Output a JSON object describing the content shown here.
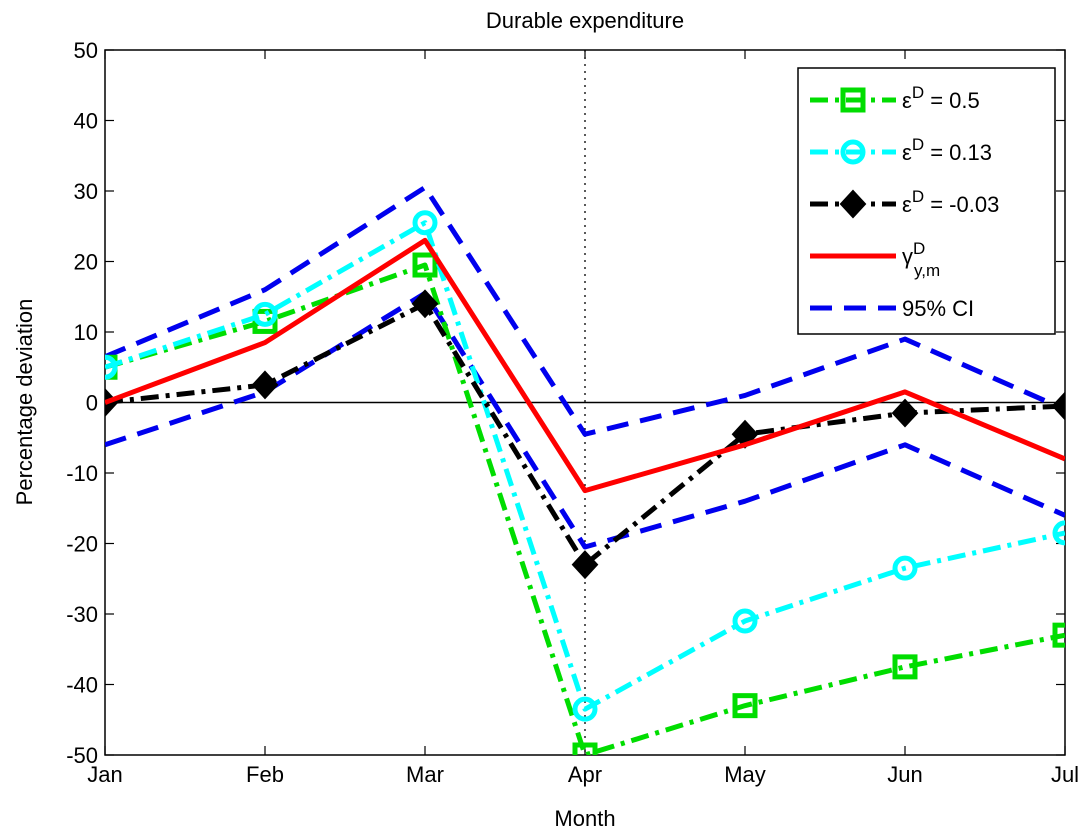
{
  "chart_data": {
    "type": "line",
    "title": "Durable expenditure",
    "xlabel": "Month",
    "ylabel": "Percentage deviation",
    "categories": [
      "Jan",
      "Feb",
      "Mar",
      "Apr",
      "May",
      "Jun",
      "Jul"
    ],
    "ylim": [
      -50,
      50
    ],
    "yticks": [
      -50,
      -40,
      -30,
      -20,
      -10,
      0,
      10,
      20,
      30,
      40,
      50
    ],
    "grid": false,
    "vline_at": "Apr",
    "zero_line": true,
    "legend_position": "top-right",
    "series": [
      {
        "key": "eps05",
        "legend_sym": "ε",
        "legend_sup": "D",
        "legend_rest": " = 0.5",
        "color": "#00dd00",
        "style": "dashdot",
        "marker": "square",
        "values": [
          5,
          11.5,
          19.5,
          -50,
          -43,
          -37.5,
          -33
        ]
      },
      {
        "key": "eps013",
        "legend_sym": "ε",
        "legend_sup": "D",
        "legend_rest": " = 0.13",
        "color": "#00ffff",
        "style": "dashdot",
        "marker": "circle",
        "values": [
          5,
          12.5,
          25.5,
          -43.5,
          -31,
          -23.5,
          -18.5
        ]
      },
      {
        "key": "epsm003",
        "legend_sym": "ε",
        "legend_sup": "D",
        "legend_rest": " = -0.03",
        "color": "#000000",
        "style": "dashdot",
        "marker": "diamond",
        "values": [
          0,
          2.5,
          14,
          -23,
          -4.5,
          -1.5,
          -0.5
        ]
      },
      {
        "key": "gamma",
        "legend_sym": "γ",
        "legend_sup": "D",
        "legend_sub": "y,m",
        "legend_rest": "",
        "color": "#ff0000",
        "style": "solid",
        "marker": "none",
        "values": [
          0,
          8.5,
          23,
          -12.5,
          -6,
          1.5,
          -8
        ]
      },
      {
        "key": "ci_upper",
        "legend_rest": "95% CI",
        "color": "#0000ee",
        "style": "dashed",
        "marker": "none",
        "in_legend": true,
        "values": [
          6.5,
          16,
          30.5,
          -4.5,
          1,
          9,
          -1
        ]
      },
      {
        "key": "ci_lower",
        "color": "#0000ee",
        "style": "dashed",
        "marker": "none",
        "in_legend": false,
        "values": [
          -6,
          1.5,
          15.5,
          -20.5,
          -14,
          -6,
          -16
        ]
      }
    ]
  }
}
